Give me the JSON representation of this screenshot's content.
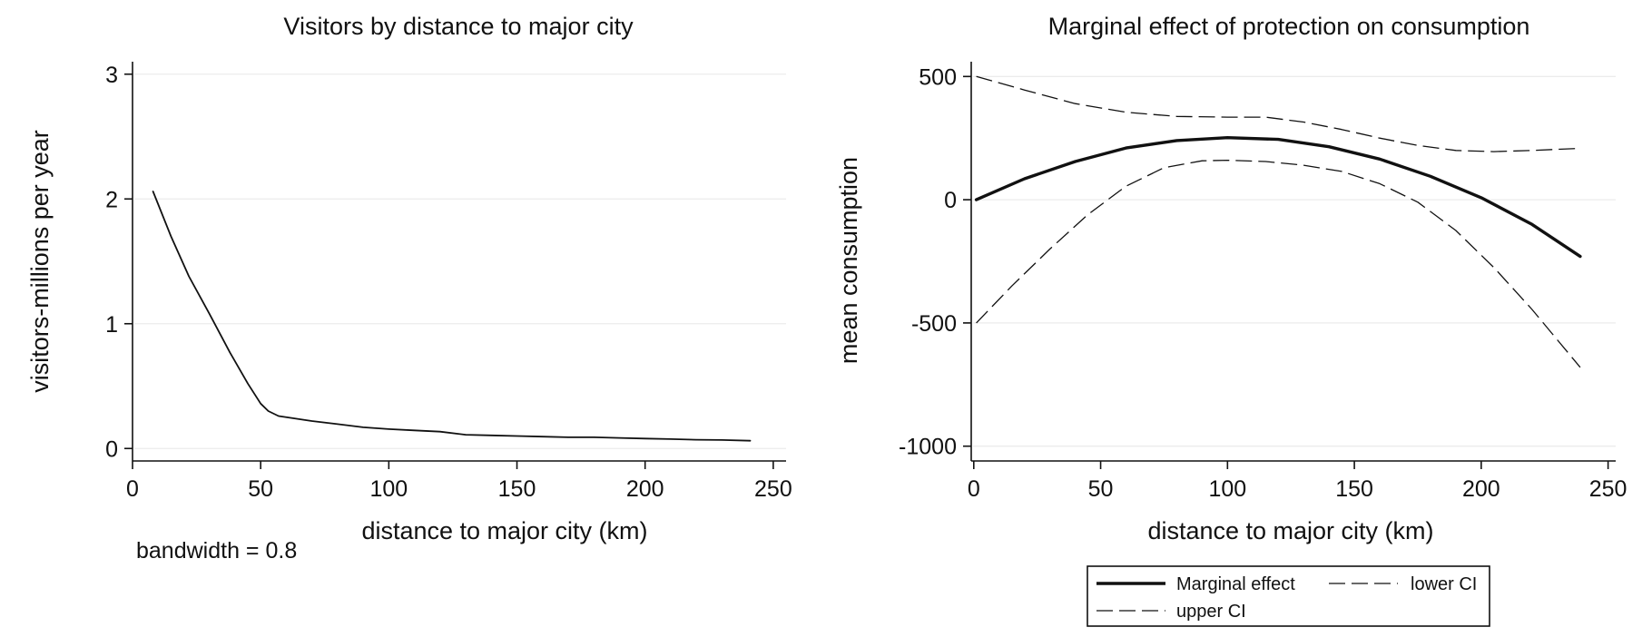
{
  "chart_data": [
    {
      "type": "line",
      "title": "Visitors by distance to major city",
      "xlabel": "distance to major city (km)",
      "ylabel": "visitors-millions per year",
      "note": "bandwidth = 0.8",
      "xlim": [
        0,
        255
      ],
      "ylim": [
        -0.1,
        3.1
      ],
      "xticks": [
        0,
        50,
        100,
        150,
        200,
        250
      ],
      "yticks": [
        0,
        1,
        2,
        3
      ],
      "grid": true,
      "series": [
        {
          "style": "solid",
          "color": "#111111",
          "points": [
            [
              8,
              2.06
            ],
            [
              15,
              1.7
            ],
            [
              22,
              1.38
            ],
            [
              30,
              1.08
            ],
            [
              38,
              0.77
            ],
            [
              45,
              0.52
            ],
            [
              50,
              0.36
            ],
            [
              53,
              0.3
            ],
            [
              57,
              0.26
            ],
            [
              62,
              0.245
            ],
            [
              70,
              0.22
            ],
            [
              80,
              0.195
            ],
            [
              90,
              0.17
            ],
            [
              100,
              0.155
            ],
            [
              110,
              0.145
            ],
            [
              120,
              0.135
            ],
            [
              130,
              0.11
            ],
            [
              140,
              0.105
            ],
            [
              150,
              0.1
            ],
            [
              160,
              0.095
            ],
            [
              170,
              0.09
            ],
            [
              180,
              0.09
            ],
            [
              190,
              0.085
            ],
            [
              200,
              0.08
            ],
            [
              210,
              0.075
            ],
            [
              220,
              0.07
            ],
            [
              230,
              0.068
            ],
            [
              241,
              0.062
            ]
          ]
        }
      ]
    },
    {
      "type": "line",
      "title": "Marginal effect of protection on consumption",
      "xlabel": "distance to major city (km)",
      "ylabel": "mean consumption",
      "xlim": [
        -1,
        253
      ],
      "ylim": [
        -1060,
        560
      ],
      "xticks": [
        0,
        50,
        100,
        150,
        200,
        250
      ],
      "yticks": [
        500,
        0,
        -500,
        -1000
      ],
      "grid": true,
      "legend_position": "bottom",
      "series": [
        {
          "name": "Marginal effect",
          "style": "solid-thick",
          "color": "#111111",
          "points": [
            [
              1,
              0
            ],
            [
              20,
              85
            ],
            [
              40,
              155
            ],
            [
              60,
              210
            ],
            [
              80,
              240
            ],
            [
              100,
              252
            ],
            [
              120,
              245
            ],
            [
              140,
              215
            ],
            [
              160,
              165
            ],
            [
              180,
              95
            ],
            [
              200,
              8
            ],
            [
              220,
              -100
            ],
            [
              239,
              -230
            ]
          ]
        },
        {
          "name": "lower CI",
          "style": "dashed",
          "color": "#111111",
          "points": [
            [
              1,
              -500
            ],
            [
              15,
              -350
            ],
            [
              30,
              -200
            ],
            [
              45,
              -60
            ],
            [
              60,
              55
            ],
            [
              75,
              130
            ],
            [
              90,
              158
            ],
            [
              100,
              160
            ],
            [
              115,
              155
            ],
            [
              130,
              140
            ],
            [
              145,
              115
            ],
            [
              160,
              65
            ],
            [
              175,
              -10
            ],
            [
              190,
              -125
            ],
            [
              205,
              -275
            ],
            [
              220,
              -445
            ],
            [
              239,
              -680
            ]
          ]
        },
        {
          "name": "upper CI",
          "style": "dashed",
          "color": "#111111",
          "points": [
            [
              1,
              500
            ],
            [
              20,
              445
            ],
            [
              40,
              390
            ],
            [
              60,
              355
            ],
            [
              80,
              338
            ],
            [
              100,
              335
            ],
            [
              115,
              335
            ],
            [
              130,
              315
            ],
            [
              145,
              285
            ],
            [
              160,
              250
            ],
            [
              175,
              220
            ],
            [
              190,
              200
            ],
            [
              205,
              195
            ],
            [
              220,
              200
            ],
            [
              238,
              208
            ]
          ]
        }
      ]
    }
  ]
}
